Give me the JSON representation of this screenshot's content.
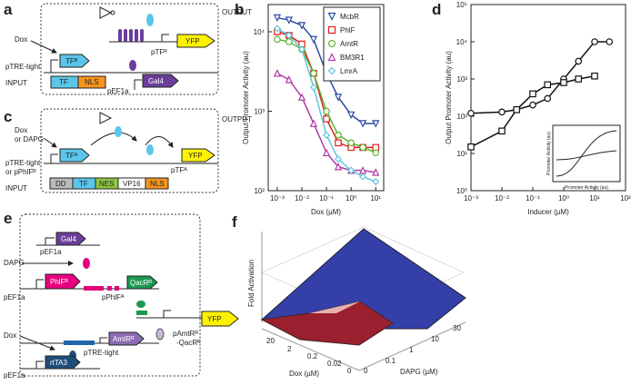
{
  "panel_labels": [
    "a",
    "b",
    "c",
    "d",
    "e",
    "f"
  ],
  "panel_a": {
    "output": "OUTPUT",
    "inducer": "Dox",
    "promoter": "pTRE-tight",
    "input": "INPUT",
    "tf": "TFᴿ",
    "tf_part": "TF",
    "nls": "NLS",
    "pef": "pEF1a",
    "gal4": "Gal4",
    "ptf": "pTFᴿ",
    "reporter": "YFP"
  },
  "panel_c": {
    "output": "OUTPUT",
    "inducer_1": "Dox",
    "inducer_2": "or DAPG",
    "promoter_1": "pTRE-tight",
    "promoter_2": "or pPhlFᴿ",
    "input": "INPUT",
    "tf": "TFᴬ",
    "ptf": "pTFᴬ",
    "reporter": "YFP",
    "parts": [
      "DD",
      "TF",
      "NES",
      "VP16",
      "NLS"
    ]
  },
  "panel_e": {
    "dapg": "DAPG",
    "dox": "Dox",
    "pef_1": "pEF1a",
    "gal4": "Gal4",
    "pef_2": "pEF1a",
    "phlf": "PhlFᴿ",
    "pphlf": "pPhlFᴬ",
    "qacr": "QacRᴿ",
    "pamtr_1": "pAmtRᴿ",
    "pamtr_2": "-QacRᴿ",
    "reporter": "YFP",
    "ptre": "pTRE-tight",
    "amtr": "AmtRᴿ",
    "pef_3": "pEF1a",
    "rtta": "rtTA3"
  },
  "panel_f": {
    "z_label": "Fold Activation",
    "x_label": "Dox (µM)",
    "y_label": "DAPG (µM)",
    "x_ticks": [
      "20",
      "2",
      "0.2",
      "0.02",
      "0"
    ],
    "y_ticks": [
      "0",
      "0.1",
      "1",
      "10",
      "30"
    ]
  },
  "chart_data": [
    {
      "type": "line",
      "log_x": true,
      "log_y": true,
      "x_label": "Dox (µM)",
      "y_label": "Output Promoter Activity (au)",
      "x": [
        0.001,
        0.003,
        0.01,
        0.03,
        0.1,
        0.3,
        1,
        3,
        10
      ],
      "xlim": [
        0.00043,
        21
      ],
      "ylim": [
        100,
        22000
      ],
      "xticks": [
        {
          "value": 0.001,
          "label": "10⁻³"
        },
        {
          "value": 0.01,
          "label": "10⁻²"
        },
        {
          "value": 0.1,
          "label": "10⁻¹"
        },
        {
          "value": 1,
          "label": "10⁰"
        },
        {
          "value": 10,
          "label": "10¹"
        }
      ],
      "yticks": [
        {
          "value": 100,
          "label": "10²"
        },
        {
          "value": 1000,
          "label": "10³"
        },
        {
          "value": 10000,
          "label": "10⁴"
        }
      ],
      "legend": "top-right",
      "series": [
        {
          "name": "McbR",
          "color": "#2b4ca0",
          "marker": "triangle-down",
          "values": [
            15000,
            14000,
            12000,
            8000,
            3000,
            1500,
            900,
            700,
            700
          ]
        },
        {
          "name": "PhlF",
          "color": "#e0201b",
          "marker": "square",
          "values": [
            10000,
            9000,
            7000,
            3000,
            800,
            400,
            350,
            350,
            350
          ]
        },
        {
          "name": "AmtR",
          "color": "#5cb531",
          "marker": "circle",
          "values": [
            8000,
            7500,
            6000,
            3000,
            1000,
            500,
            400,
            350,
            300
          ]
        },
        {
          "name": "BM3R1",
          "color": "#b03aa6",
          "marker": "triangle-up",
          "values": [
            3000,
            2500,
            1500,
            700,
            300,
            200,
            180,
            180,
            170
          ]
        },
        {
          "name": "LmrA",
          "color": "#5fc8dd",
          "marker": "diamond",
          "values": [
            11000,
            9000,
            6000,
            2000,
            500,
            250,
            180,
            150,
            130
          ]
        }
      ]
    },
    {
      "type": "line",
      "log_x": true,
      "log_y": true,
      "x_label": "Inducer (µM)",
      "y_label": "Output Promoter Activity (au)",
      "x": [
        0.001,
        0.01,
        0.03,
        0.1,
        0.3,
        1,
        3,
        10,
        30
      ],
      "xlim": [
        0.001,
        100
      ],
      "ylim": [
        1,
        100000
      ],
      "xticks": [
        {
          "value": 0.001,
          "label": "10⁻³"
        },
        {
          "value": 0.01,
          "label": "10⁻²"
        },
        {
          "value": 0.1,
          "label": "10⁻¹"
        },
        {
          "value": 1,
          "label": "10⁰"
        },
        {
          "value": 10,
          "label": "10¹"
        },
        {
          "value": 100,
          "label": "10²"
        }
      ],
      "yticks": [
        {
          "value": 1,
          "label": "10⁰"
        },
        {
          "value": 10,
          "label": "10¹"
        },
        {
          "value": 100,
          "label": "10²"
        },
        {
          "value": 1000,
          "label": "10³"
        },
        {
          "value": 10000,
          "label": "10⁴"
        },
        {
          "value": 100000,
          "label": "10⁵"
        }
      ],
      "series": [
        {
          "color": "#111111",
          "marker": "circle",
          "values": [
            120,
            130,
            150,
            200,
            300,
            1000,
            3000,
            10000,
            10000
          ]
        },
        {
          "color": "#111111",
          "marker": "square",
          "values": [
            15,
            40,
            150,
            400,
            700,
            800,
            1000,
            1200,
            null
          ]
        }
      ],
      "inset": {
        "x_label": "Promoter Activity (au)",
        "y_label": "Promoter Activity (au)"
      }
    }
  ]
}
